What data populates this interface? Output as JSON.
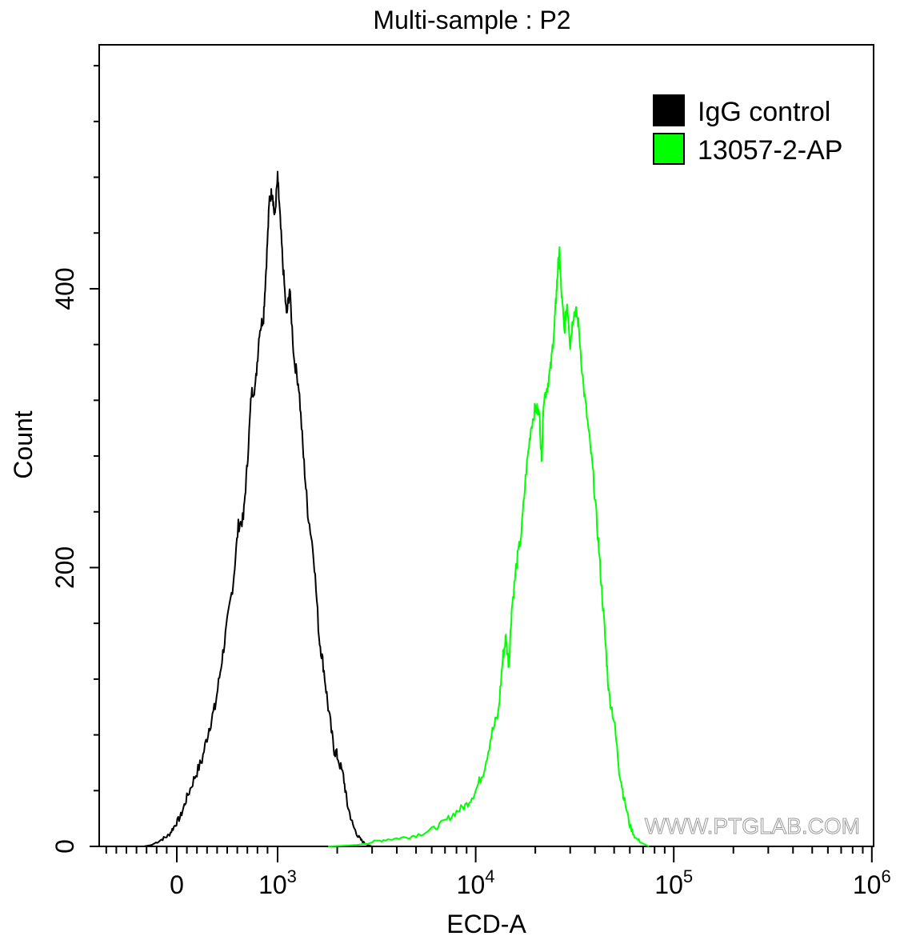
{
  "chart_data": {
    "type": "line",
    "title": "Multi-sample : P2",
    "xlabel": "ECD-A",
    "ylabel": "Count",
    "xscale": "biexponential (log above 10^3)",
    "ylim": [
      0,
      575
    ],
    "y_ticks": [
      0,
      200,
      400
    ],
    "x_ticks": [
      {
        "value": 0,
        "label": "0",
        "sup": ""
      },
      {
        "value": 1000,
        "label": "10",
        "sup": "3"
      },
      {
        "value": 10000,
        "label": "10",
        "sup": "4"
      },
      {
        "value": 100000,
        "label": "10",
        "sup": "5"
      },
      {
        "value": 1000000,
        "label": "10",
        "sup": "6"
      }
    ],
    "legend": {
      "position": "top-right"
    },
    "grid": false,
    "series": [
      {
        "name": "IgG control",
        "color": "#000000",
        "points": [
          [
            -330,
            0
          ],
          [
            -250,
            1
          ],
          [
            -150,
            5
          ],
          [
            -80,
            8
          ],
          [
            -20,
            15
          ],
          [
            40,
            22
          ],
          [
            100,
            35
          ],
          [
            180,
            50
          ],
          [
            250,
            62
          ],
          [
            320,
            85
          ],
          [
            380,
            100
          ],
          [
            440,
            130
          ],
          [
            500,
            160
          ],
          [
            560,
            190
          ],
          [
            610,
            230
          ],
          [
            660,
            235
          ],
          [
            700,
            275
          ],
          [
            740,
            325
          ],
          [
            780,
            330
          ],
          [
            820,
            370
          ],
          [
            860,
            380
          ],
          [
            890,
            420
          ],
          [
            920,
            465
          ],
          [
            950,
            470
          ],
          [
            970,
            450
          ],
          [
            1000,
            480
          ],
          [
            1020,
            460
          ],
          [
            1060,
            420
          ],
          [
            1110,
            380
          ],
          [
            1150,
            400
          ],
          [
            1210,
            350
          ],
          [
            1280,
            330
          ],
          [
            1350,
            280
          ],
          [
            1420,
            240
          ],
          [
            1520,
            210
          ],
          [
            1620,
            150
          ],
          [
            1700,
            130
          ],
          [
            1800,
            100
          ],
          [
            1920,
            70
          ],
          [
            2000,
            65
          ],
          [
            2150,
            50
          ],
          [
            2250,
            30
          ],
          [
            2400,
            15
          ],
          [
            2550,
            7
          ],
          [
            2700,
            3
          ],
          [
            2850,
            1
          ],
          [
            3000,
            0
          ]
        ]
      },
      {
        "name": "13057-2-AP",
        "color": "#00ff00",
        "points": [
          [
            1800,
            0
          ],
          [
            2500,
            1
          ],
          [
            3000,
            3
          ],
          [
            3500,
            5
          ],
          [
            4200,
            6
          ],
          [
            5000,
            8
          ],
          [
            6000,
            12
          ],
          [
            7000,
            18
          ],
          [
            8000,
            25
          ],
          [
            9000,
            30
          ],
          [
            10000,
            40
          ],
          [
            11000,
            55
          ],
          [
            12000,
            80
          ],
          [
            13000,
            95
          ],
          [
            13700,
            135
          ],
          [
            14200,
            150
          ],
          [
            14700,
            130
          ],
          [
            15200,
            170
          ],
          [
            16000,
            200
          ],
          [
            17000,
            225
          ],
          [
            18000,
            270
          ],
          [
            19000,
            300
          ],
          [
            20000,
            315
          ],
          [
            21000,
            310
          ],
          [
            21500,
            275
          ],
          [
            22000,
            320
          ],
          [
            23000,
            330
          ],
          [
            24000,
            345
          ],
          [
            25000,
            375
          ],
          [
            25500,
            395
          ],
          [
            26000,
            415
          ],
          [
            26500,
            425
          ],
          [
            27000,
            400
          ],
          [
            28000,
            370
          ],
          [
            29000,
            390
          ],
          [
            30000,
            360
          ],
          [
            31000,
            380
          ],
          [
            32000,
            385
          ],
          [
            33000,
            375
          ],
          [
            35000,
            330
          ],
          [
            37000,
            300
          ],
          [
            39000,
            270
          ],
          [
            41000,
            230
          ],
          [
            43000,
            190
          ],
          [
            45000,
            150
          ],
          [
            47000,
            110
          ],
          [
            50000,
            90
          ],
          [
            53000,
            55
          ],
          [
            56000,
            35
          ],
          [
            60000,
            15
          ],
          [
            64000,
            6
          ],
          [
            70000,
            2
          ],
          [
            75000,
            0
          ]
        ]
      }
    ]
  },
  "watermark": "WWW.PTGLAB.COM"
}
